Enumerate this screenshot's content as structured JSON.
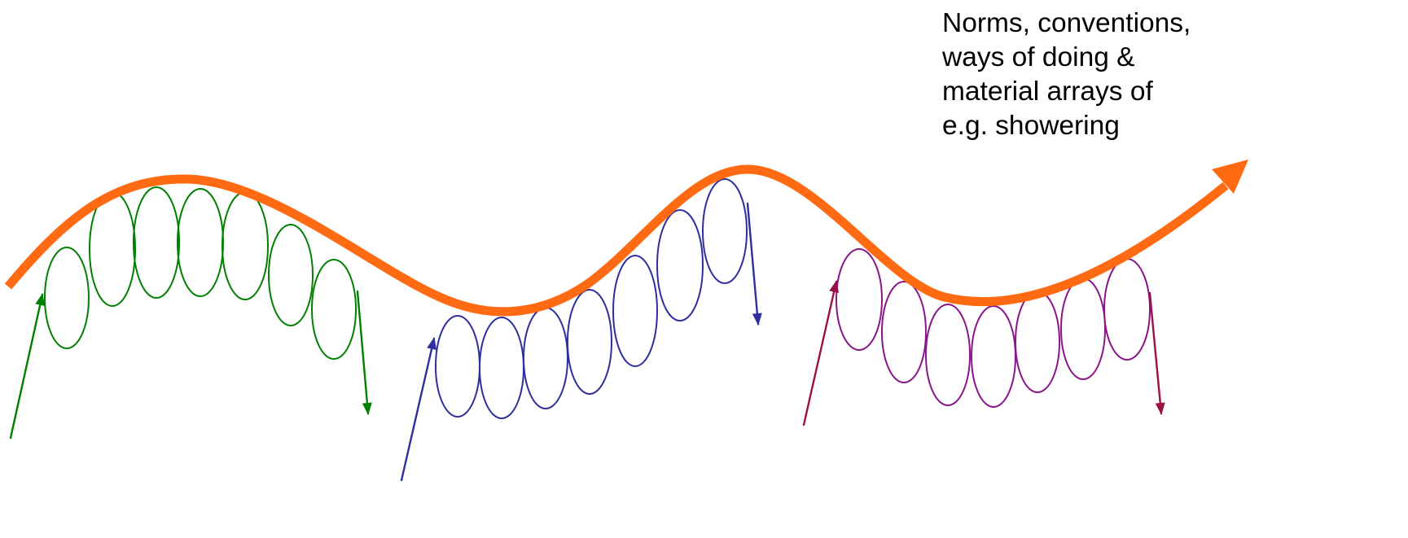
{
  "annotation": {
    "lines": [
      "Norms, conventions,",
      "ways of doing &",
      "material arrays of",
      "e.g. showering"
    ]
  },
  "colors": {
    "practice_wave": "#ff6a13",
    "loop_group_1": "#008000",
    "arrow_group_1": "#008000",
    "loop_group_2": "#2e2e9e",
    "arrow_group_2": "#2e2e9e",
    "loop_group_3": "#8a158a",
    "arrow_group_3": "#9b1045"
  },
  "loop_groups": [
    {
      "name": "green",
      "loop_count": 7
    },
    {
      "name": "blue",
      "loop_count": 7
    },
    {
      "name": "purple",
      "loop_count": 7
    }
  ]
}
